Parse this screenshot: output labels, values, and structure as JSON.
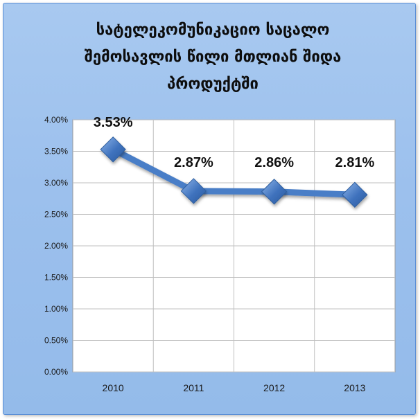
{
  "chart_data": {
    "type": "line",
    "title_lines": [
      "სატელეკომუნიკაციო საცალო",
      "შემოსავლის წილი მთლიან შიდა",
      "პროდუქტში"
    ],
    "categories": [
      "2010",
      "2011",
      "2012",
      "2013"
    ],
    "series": [
      {
        "values": [
          3.53,
          2.87,
          2.86,
          2.81
        ]
      }
    ],
    "data_labels": [
      "3.53%",
      "2.87%",
      "2.86%",
      "2.81%"
    ],
    "y_ticks": [
      "0.00%",
      "0.50%",
      "1.00%",
      "1.50%",
      "2.00%",
      "2.50%",
      "3.00%",
      "3.50%",
      "4.00%"
    ],
    "ylim": [
      0,
      4
    ],
    "grid": true,
    "legend": "none",
    "colors": {
      "line": "#4a7ec7",
      "marker": "#3f72bd",
      "frame_background": "#a3c5ef",
      "plot_background": "#ffffff",
      "grid": "#bfbfbf"
    }
  }
}
